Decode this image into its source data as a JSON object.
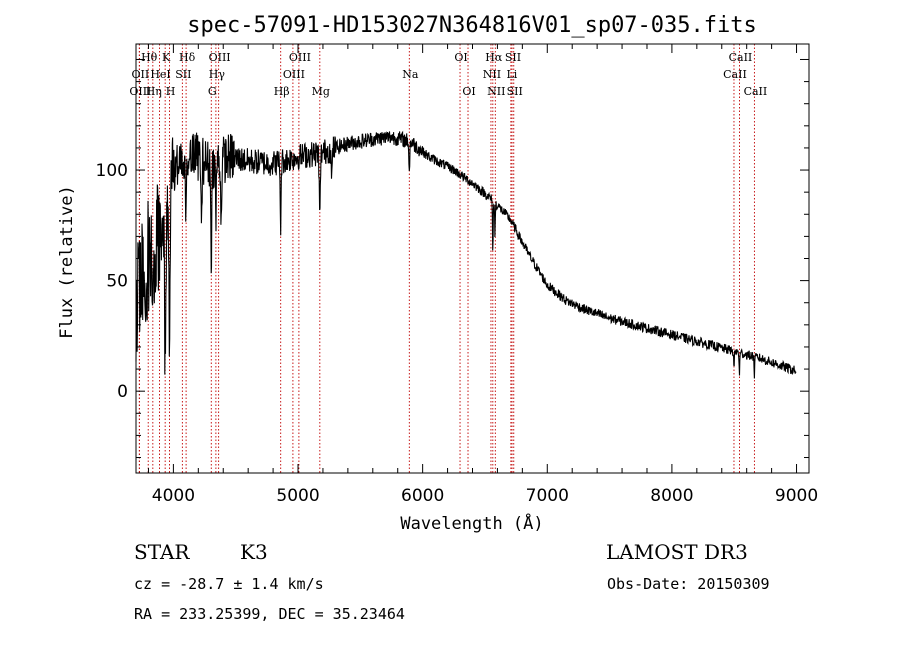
{
  "chart_data": {
    "type": "line",
    "title": "spec-57091-HD153027N364816V01_sp07-035.fits",
    "xlabel": "Wavelength (Å)",
    "ylabel": "Flux (relative)",
    "xlim": [
      3700,
      9100
    ],
    "ylim": [
      -37,
      157
    ],
    "xticks": [
      4000,
      5000,
      6000,
      7000,
      8000,
      9000
    ],
    "yticks": [
      0,
      50,
      100
    ],
    "spectrum_anchors": [
      [
        3700,
        40
      ],
      [
        3760,
        55
      ],
      [
        3850,
        65
      ],
      [
        3920,
        80
      ],
      [
        3980,
        96
      ],
      [
        4050,
        106
      ],
      [
        4150,
        108
      ],
      [
        4300,
        102
      ],
      [
        4450,
        106
      ],
      [
        4600,
        104
      ],
      [
        4800,
        103
      ],
      [
        5000,
        106
      ],
      [
        5200,
        108
      ],
      [
        5400,
        112
      ],
      [
        5600,
        114
      ],
      [
        5750,
        115
      ],
      [
        5900,
        113
      ],
      [
        6050,
        106
      ],
      [
        6250,
        100
      ],
      [
        6400,
        94
      ],
      [
        6550,
        87
      ],
      [
        6700,
        78
      ],
      [
        6850,
        62
      ],
      [
        7000,
        48
      ],
      [
        7150,
        41
      ],
      [
        7300,
        37
      ],
      [
        7500,
        33
      ],
      [
        7700,
        30
      ],
      [
        7900,
        27
      ],
      [
        8100,
        24
      ],
      [
        8300,
        21
      ],
      [
        8500,
        18
      ],
      [
        8700,
        15
      ],
      [
        8900,
        11
      ],
      [
        9000,
        9
      ]
    ],
    "spectral_lines": [
      {
        "label": "Hθ",
        "wl": 3798,
        "row": 1
      },
      {
        "label": "OII",
        "wl": 3727,
        "row": 2
      },
      {
        "label": "OIII",
        "wl": 3727,
        "row": 3
      },
      {
        "label": "K",
        "wl": 3934,
        "row": 1
      },
      {
        "label": "HeI",
        "wl": 3889,
        "row": 2
      },
      {
        "label": "Hη",
        "wl": 3835,
        "row": 3
      },
      {
        "label": "Hδ",
        "wl": 4102,
        "row": 1
      },
      {
        "label": "SII",
        "wl": 4072,
        "row": 2
      },
      {
        "label": "H",
        "wl": 3969,
        "row": 3
      },
      {
        "label": "OIII",
        "wl": 4363,
        "row": 1
      },
      {
        "label": "Hγ",
        "wl": 4341,
        "row": 2
      },
      {
        "label": "G",
        "wl": 4304,
        "row": 3
      },
      {
        "label": "OIII",
        "wl": 5007,
        "row": 1
      },
      {
        "label": "OIII",
        "wl": 4959,
        "row": 2
      },
      {
        "label": "Hβ",
        "wl": 4861,
        "row": 3
      },
      {
        "label": "Mg",
        "wl": 5175,
        "row": 3
      },
      {
        "label": "Na",
        "wl": 5893,
        "row": 2
      },
      {
        "label": "OI",
        "wl": 6300,
        "row": 1
      },
      {
        "label": "OI",
        "wl": 6364,
        "row": 3
      },
      {
        "label": "Hα",
        "wl": 6563,
        "row": 1
      },
      {
        "label": "NII",
        "wl": 6548,
        "row": 2
      },
      {
        "label": "NII",
        "wl": 6583,
        "row": 3
      },
      {
        "label": "SII",
        "wl": 6717,
        "row": 1
      },
      {
        "label": "Li",
        "wl": 6708,
        "row": 2
      },
      {
        "label": "SII",
        "wl": 6731,
        "row": 3
      },
      {
        "label": "CaII",
        "wl": 8542,
        "row": 1
      },
      {
        "label": "CaII",
        "wl": 8498,
        "row": 2
      },
      {
        "label": "CaII",
        "wl": 8662,
        "row": 3
      }
    ],
    "line_color": "#000000",
    "marker_color": "#c00000"
  },
  "info": {
    "object_class": "STAR",
    "subclass": "K3",
    "survey": "LAMOST DR3",
    "redshift": "cz = -28.7 ± 1.4 km/s",
    "obs_date": "Obs-Date: 20150309",
    "coords": "RA = 233.25399, DEC =  35.23464"
  }
}
